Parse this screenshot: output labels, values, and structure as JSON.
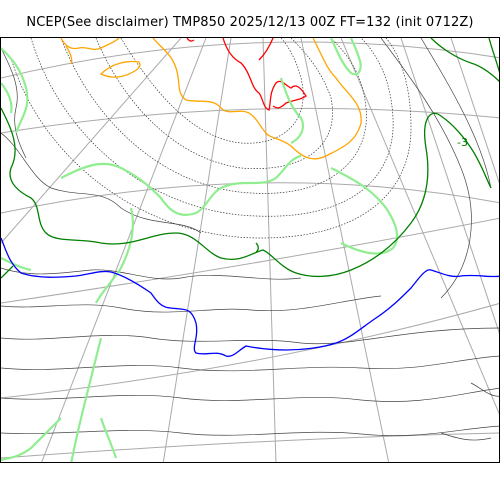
{
  "header": {
    "title": "NCEP(See disclaimer) TMP850 2025/12/13 00Z FT=132 (init 0712Z)"
  },
  "map": {
    "colors": {
      "graticule": "#aaaaaa",
      "coast": "#000000",
      "isotherm_warm": "#ff0000",
      "isotherm_mild": "#ffa500",
      "isotherm_zero_band": "#90ee90",
      "isotherm_cold": "#008000",
      "isotherm_very_cold": "#0000ff"
    },
    "labels": {
      "contour_value": "-3"
    }
  }
}
